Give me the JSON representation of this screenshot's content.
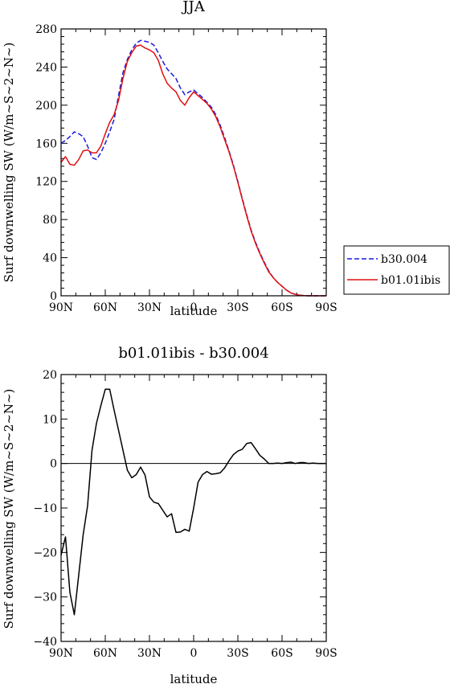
{
  "chart_data": [
    {
      "type": "line",
      "title": "JJA",
      "xlabel": "latitude",
      "ylabel": "Surf downwelling SW (W/m~S~2~N~)",
      "x": [
        90,
        87,
        84,
        81,
        78,
        75,
        72,
        69,
        66,
        63,
        60,
        57,
        54,
        51,
        48,
        45,
        42,
        39,
        36,
        33,
        30,
        27,
        24,
        21,
        18,
        15,
        12,
        9,
        6,
        3,
        0,
        -3,
        -6,
        -9,
        -12,
        -15,
        -18,
        -21,
        -24,
        -27,
        -30,
        -33,
        -36,
        -39,
        -42,
        -45,
        -48,
        -51,
        -54,
        -57,
        -60,
        -63,
        -66,
        -69,
        -72,
        -75,
        -78,
        -81,
        -84,
        -87,
        -90
      ],
      "xlim": [
        90,
        -90
      ],
      "xticks": [
        "90N",
        "60N",
        "30N",
        "0",
        "30S",
        "60S",
        "90S"
      ],
      "ylim": [
        0,
        280
      ],
      "yticks": [
        "0",
        "40",
        "80",
        "120",
        "160",
        "200",
        "240",
        "280"
      ],
      "legend": "right",
      "series": [
        {
          "name": "b30.004",
          "color": "#1a1adc",
          "dash": "dashed",
          "values": [
            160,
            163,
            167,
            172,
            170,
            167,
            157,
            145,
            143,
            150,
            160,
            172,
            185,
            210,
            234,
            248,
            258,
            265,
            268,
            267,
            266,
            263,
            255,
            246,
            238,
            233,
            228,
            218,
            211,
            214,
            216,
            212,
            208,
            203,
            198,
            190,
            179,
            166,
            152,
            137,
            120,
            102,
            85,
            69,
            56,
            45,
            35,
            26,
            19,
            14,
            10,
            6,
            3,
            1.5,
            0.6,
            0.2,
            0,
            0,
            0,
            0,
            0
          ]
        },
        {
          "name": "b01.01ibis",
          "color": "#e01010",
          "dash": "solid",
          "values": [
            140,
            146,
            138,
            137,
            143,
            152,
            153,
            150,
            150,
            157,
            170,
            182,
            190,
            205,
            228,
            246,
            255,
            262,
            263,
            260,
            258,
            255,
            247,
            233,
            223,
            218,
            214,
            205,
            200,
            208,
            214,
            210,
            206,
            202,
            196,
            188,
            177,
            164,
            151,
            136,
            119,
            101,
            84,
            68,
            55,
            44,
            34,
            25,
            19,
            14,
            10,
            6,
            3,
            1.5,
            0.6,
            0.2,
            0,
            0,
            0,
            0,
            0
          ]
        }
      ]
    },
    {
      "type": "line",
      "title": "b01.01ibis - b30.004",
      "xlabel": "latitude",
      "ylabel": "Surf downwelling SW (W/m~S~2~N~)",
      "x": [
        90,
        87,
        84,
        81,
        78,
        75,
        72,
        69,
        66,
        63,
        60,
        57,
        54,
        51,
        48,
        45,
        42,
        39,
        36,
        33,
        30,
        27,
        24,
        21,
        18,
        15,
        12,
        9,
        6,
        3,
        0,
        -3,
        -6,
        -9,
        -12,
        -15,
        -18,
        -21,
        -24,
        -27,
        -30,
        -33,
        -36,
        -39,
        -42,
        -45,
        -48,
        -51,
        -54,
        -57,
        -60,
        -63,
        -66,
        -69,
        -72,
        -75,
        -78,
        -81,
        -84,
        -87,
        -90
      ],
      "xlim": [
        90,
        -90
      ],
      "xticks": [
        "90N",
        "60N",
        "30N",
        "0",
        "30S",
        "60S",
        "90S"
      ],
      "ylim": [
        -40,
        20
      ],
      "yticks": [
        "−40",
        "−30",
        "−20",
        "−10",
        "0",
        "10",
        "20"
      ],
      "series": [
        {
          "color": "#000000",
          "dash": "solid",
          "values": [
            -20.6,
            -16.5,
            -29,
            -34,
            -25,
            -16,
            -9.5,
            3,
            9,
            13,
            16.7,
            16.7,
            12,
            7.5,
            3,
            -1.5,
            -3.2,
            -2.5,
            -0.8,
            -2.6,
            -7.5,
            -8.7,
            -9,
            -10.5,
            -12,
            -11.3,
            -15.5,
            -15.4,
            -14.8,
            -15.2,
            -10,
            -4.2,
            -2.5,
            -1.8,
            -2.4,
            -2.3,
            -2.1,
            -1,
            0.6,
            2,
            2.8,
            3.2,
            4.5,
            4.7,
            3.3,
            1.8,
            1,
            0,
            0,
            0.1,
            0,
            0.2,
            0.3,
            0,
            0.2,
            0.2,
            0,
            0.1,
            0,
            0,
            0
          ]
        }
      ]
    }
  ]
}
